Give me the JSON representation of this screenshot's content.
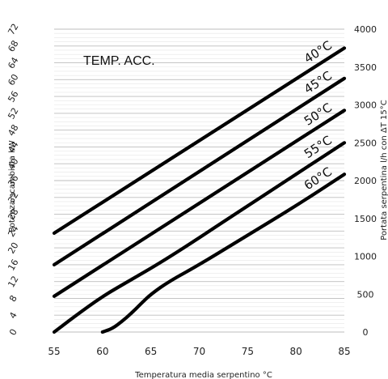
{
  "chart_data": {
    "type": "line",
    "title": "",
    "annotation": "TEMP. ACC.",
    "xlabel": "Temperatura  media serpentino °C",
    "ylabel_left": "Potenza scambiata kW",
    "ylabel_right": "Portata serpentina l/h con ΔT 15°C",
    "xlim": [
      55,
      85
    ],
    "ylim_left": [
      0,
      72
    ],
    "ylim_right": [
      0,
      4000
    ],
    "x_ticks": [
      "55",
      "60",
      "65",
      "70",
      "75",
      "80",
      "85"
    ],
    "y_left_ticks": [
      "0",
      "4",
      "8",
      "12",
      "16",
      "20",
      "24",
      "28",
      "32",
      "36",
      "40",
      "44",
      "48",
      "52",
      "56",
      "60",
      "64",
      "68",
      "72"
    ],
    "y_right_ticks": [
      "0",
      "500",
      "1000",
      "1500",
      "2000",
      "2500",
      "3000",
      "3500",
      "4000"
    ],
    "grid": true,
    "series": [
      {
        "name": "40°C",
        "x": [
          55,
          85
        ],
        "y": [
          23.5,
          67.5
        ]
      },
      {
        "name": "45°C",
        "x": [
          55,
          85
        ],
        "y": [
          16,
          60.3
        ]
      },
      {
        "name": "50°C",
        "x": [
          55,
          85
        ],
        "y": [
          8.5,
          52.7
        ]
      },
      {
        "name": "55°C",
        "x": [
          55,
          57,
          60,
          63,
          66,
          70,
          75,
          80,
          85
        ],
        "y": [
          0,
          3.5,
          8.5,
          12.5,
          16.5,
          22.4,
          30,
          37.5,
          45
        ]
      },
      {
        "name": "60°C",
        "x": [
          60,
          61,
          62,
          63,
          64,
          65,
          67,
          70,
          75,
          80,
          85
        ],
        "y": [
          0,
          0.8,
          2.5,
          4.5,
          6.8,
          9.0,
          12.2,
          16.0,
          23.0,
          30.0,
          37.5
        ]
      }
    ]
  }
}
